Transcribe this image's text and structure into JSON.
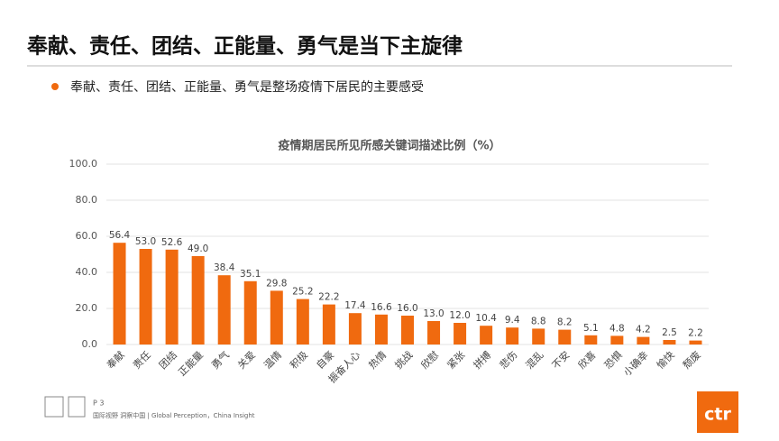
{
  "header": {
    "title": "奉献、责任、团结、正能量、勇气是当下主旋律"
  },
  "bullet": "奉献、责任、团结、正能量、勇气是整场疫情下居民的主要感受",
  "chart_data": {
    "type": "bar",
    "title": "疫情期居民所见所感关键词描述比例（%）",
    "categories": [
      "奉献",
      "责任",
      "团结",
      "正能量",
      "勇气",
      "关爱",
      "温情",
      "积极",
      "自豪",
      "振奋人心",
      "热情",
      "挑战",
      "欣慰",
      "紧张",
      "拼搏",
      "悲伤",
      "混乱",
      "不安",
      "欣喜",
      "恐惧",
      "小确幸",
      "愉快",
      "颓废"
    ],
    "values": [
      56.4,
      53.0,
      52.6,
      49.0,
      38.4,
      35.1,
      29.8,
      25.2,
      22.2,
      17.4,
      16.6,
      16.0,
      13.0,
      12.0,
      10.4,
      9.4,
      8.8,
      8.2,
      5.1,
      4.8,
      4.2,
      2.5,
      2.2
    ],
    "value_labels": [
      "56.4",
      "53.0",
      "52.6",
      "49.0",
      "38.4",
      "35.1",
      "29.8",
      "25.2",
      "22.2",
      "17.4",
      "16.6",
      "16.0",
      "13.0",
      "12.0",
      "10.4",
      "9.4",
      "8.8",
      "8.2",
      "5.1",
      "4.8",
      "4.2",
      "2.5",
      "2.2"
    ],
    "color": "#f06a0f",
    "ylim": [
      0,
      100
    ],
    "yticks": [
      {
        "value": 0,
        "label": "0.0"
      },
      {
        "value": 20,
        "label": "20.0"
      },
      {
        "value": 40,
        "label": "40.0"
      },
      {
        "value": 60,
        "label": "60.0"
      },
      {
        "value": 80,
        "label": "80.0"
      },
      {
        "value": 100,
        "label": "100.0"
      }
    ],
    "grid": true
  },
  "footer": {
    "page": "P 3",
    "slogan": "国际视野  洞察中国 |  Global Perception，China Insight",
    "logo": "ctr"
  }
}
